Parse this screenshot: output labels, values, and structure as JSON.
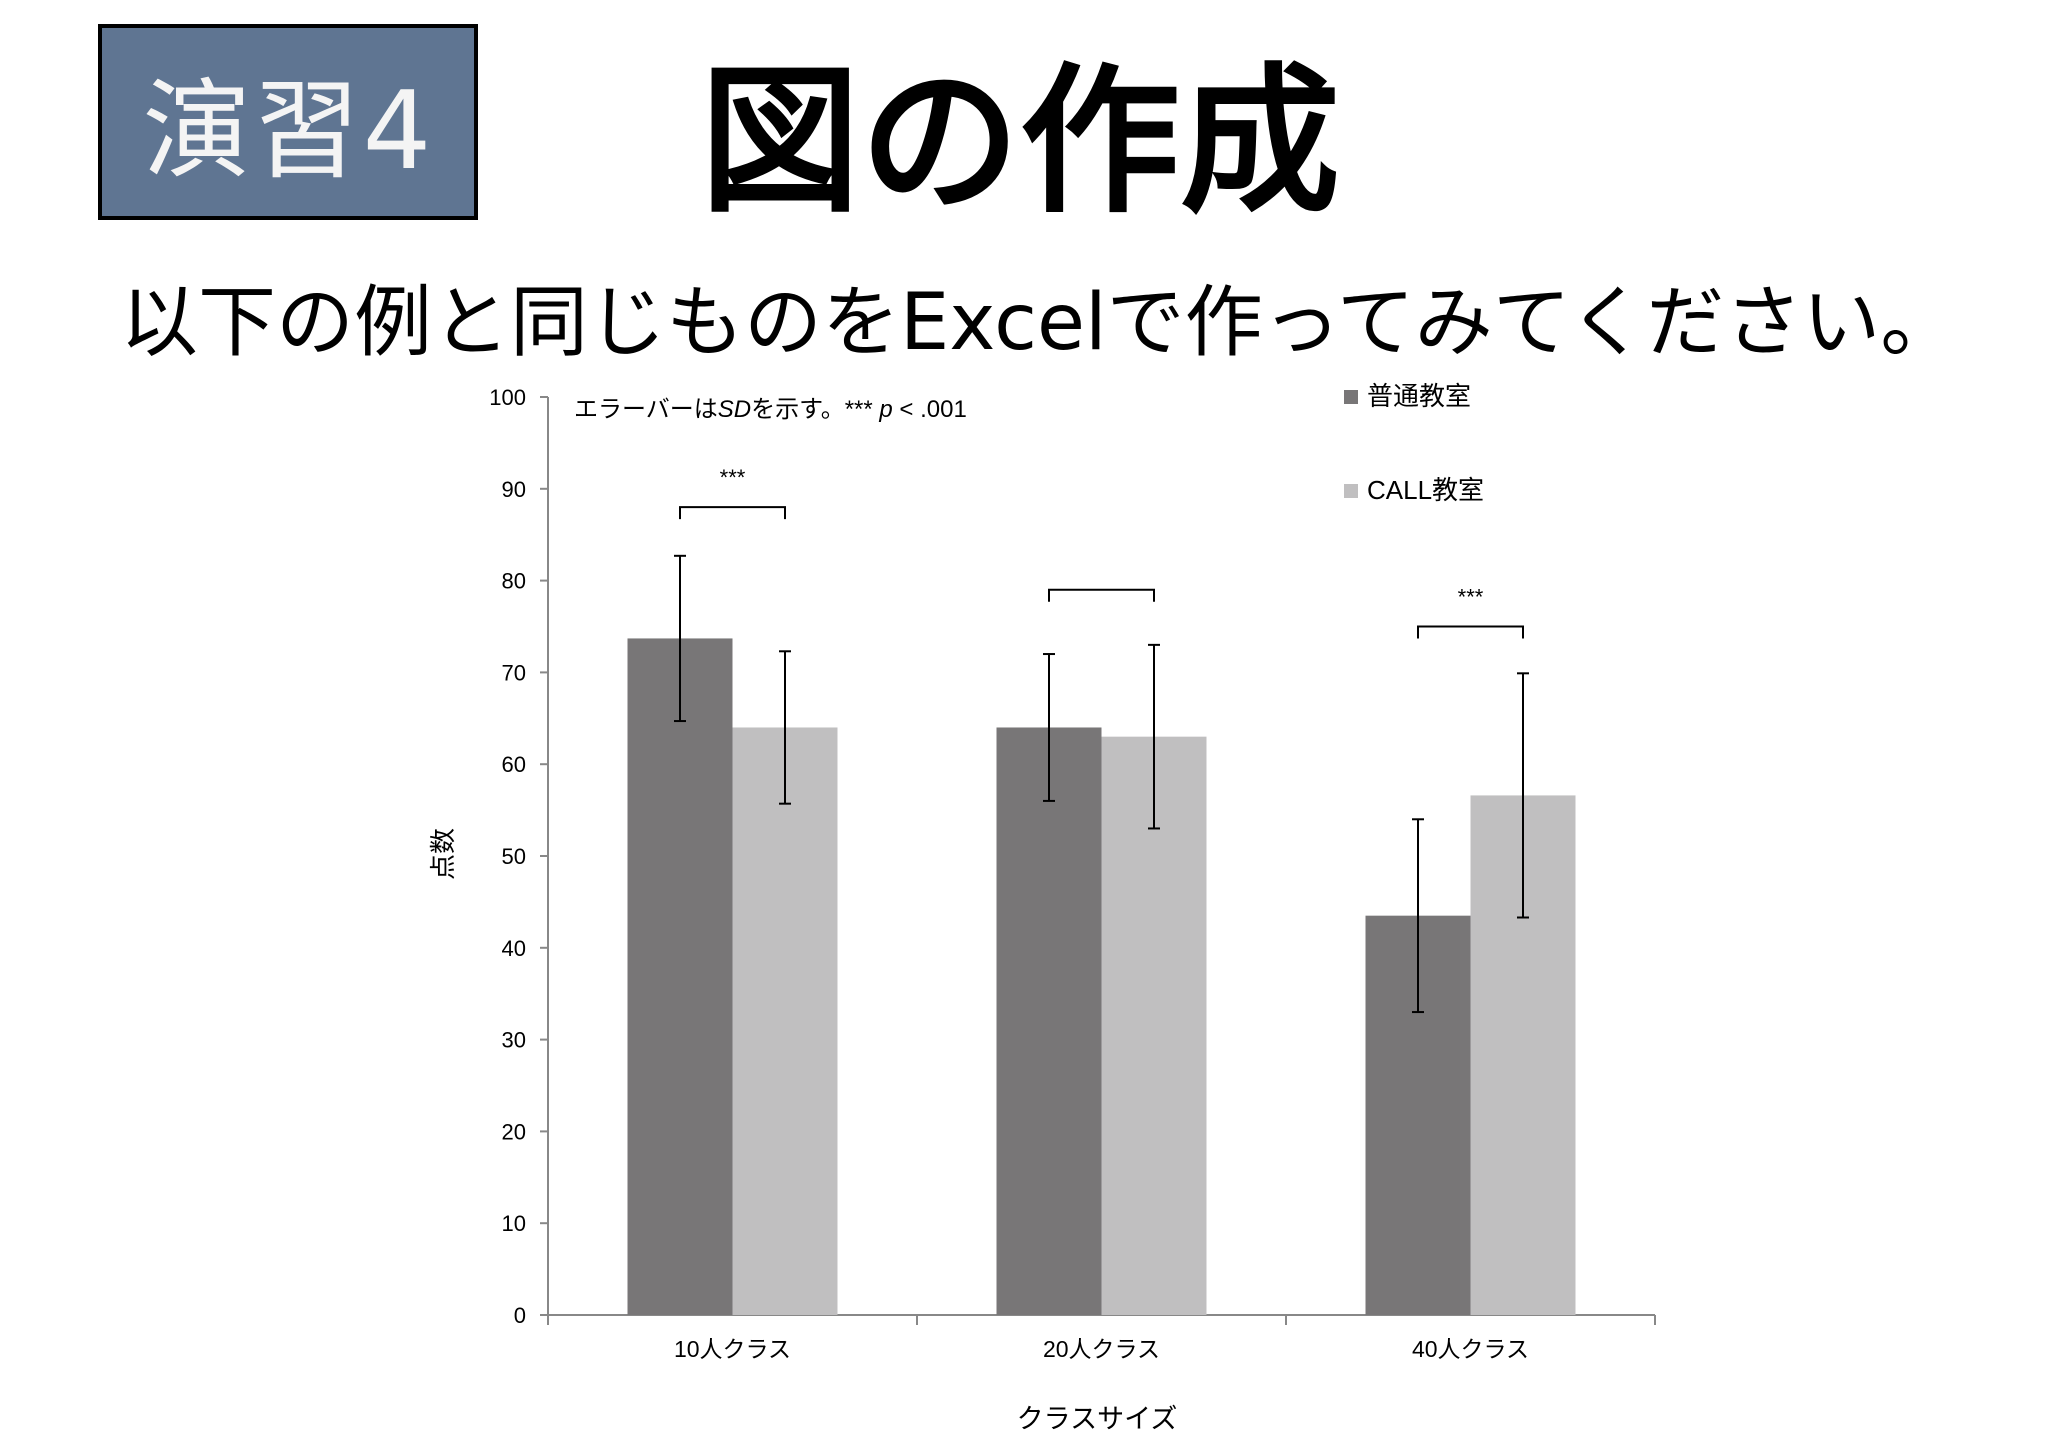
{
  "badge": {
    "label": "演習4"
  },
  "title": "図の作成",
  "subtitle": "以下の例と同じものをExcelで作ってみてください。",
  "chart_data": {
    "type": "bar",
    "categories": [
      "10人クラス",
      "20人クラス",
      "40人クラス"
    ],
    "series": [
      {
        "name": "普通教室",
        "color": "#787677",
        "values": [
          73.7,
          64.0,
          43.5
        ],
        "sd": [
          9.0,
          8.0,
          10.5
        ]
      },
      {
        "name": "CALL教室",
        "color": "#c0bfc0",
        "values": [
          64.0,
          63.0,
          56.6
        ],
        "sd": [
          8.3,
          10.0,
          13.3
        ]
      }
    ],
    "ylim": [
      0,
      100
    ],
    "yticks": [
      0,
      10,
      20,
      30,
      40,
      50,
      60,
      70,
      80,
      90,
      100
    ],
    "ylabel": "点数",
    "xlabel": "クラスサイズ",
    "annotation": {
      "prefix": "エラーバーは",
      "sd": "SD",
      "middle": "を示す。*** ",
      "p": "p",
      "suffix": " < .001"
    },
    "significance": [
      {
        "category": 0,
        "bracket_y": 88,
        "label": "***"
      },
      {
        "category": 1,
        "bracket_y": 79,
        "label": ""
      },
      {
        "category": 2,
        "bracket_y": 75,
        "label": "***"
      }
    ],
    "legend_position": "top-right",
    "grid": false
  }
}
